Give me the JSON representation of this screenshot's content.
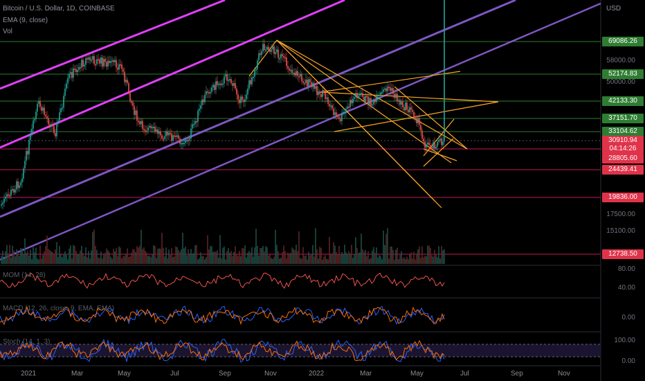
{
  "header": {
    "title": "Bitcoin / U.S. Dollar, 1D, COINBASE",
    "ema": "EMA (9, close)",
    "vol": "Vol",
    "currency": "USD"
  },
  "price_badges": [
    {
      "label": "69086.26",
      "color": "#2e7d32"
    },
    {
      "label": "52174.83",
      "color": "#2e7d32"
    },
    {
      "label": "42133.30",
      "color": "#2e7d32"
    },
    {
      "label": "37151.70",
      "color": "#2e7d32"
    },
    {
      "label": "33104.62",
      "color": "#2e7d32"
    },
    {
      "label": "30910.94",
      "color": "#e0334a"
    },
    {
      "label": "04:14:26",
      "color": "#e0334a"
    },
    {
      "label": "28805.60",
      "color": "#e0334a"
    },
    {
      "label": "24439.41",
      "color": "#e0334a"
    },
    {
      "label": "19836.00",
      "color": "#e0334a"
    },
    {
      "label": "12738.50",
      "color": "#e0334a"
    }
  ],
  "price_scale": [
    "58000.00",
    "50000.00",
    "17500.00",
    "15100.00"
  ],
  "indicators": {
    "mom": "MOM (14, 28)",
    "macd": "MACD (12, 26, close, 9, EMA, EMA)",
    "stoch": "Stoch (14, 1, 3)",
    "mom_scale": [
      "80.00",
      "40.00"
    ],
    "macd_scale": [
      "0.00"
    ],
    "stoch_scale": [
      "100.00",
      "0.00"
    ]
  },
  "time_axis": [
    "2021",
    "Mar",
    "May",
    "Jul",
    "Sep",
    "Nov",
    "2022",
    "Mar",
    "May",
    "Jul",
    "Sep",
    "Nov"
  ],
  "colors": {
    "up": "#26a69a",
    "down": "#ef5350",
    "magenta": "#e040fb",
    "purple": "#7e57c2",
    "orange": "#ffa726"
  }
}
